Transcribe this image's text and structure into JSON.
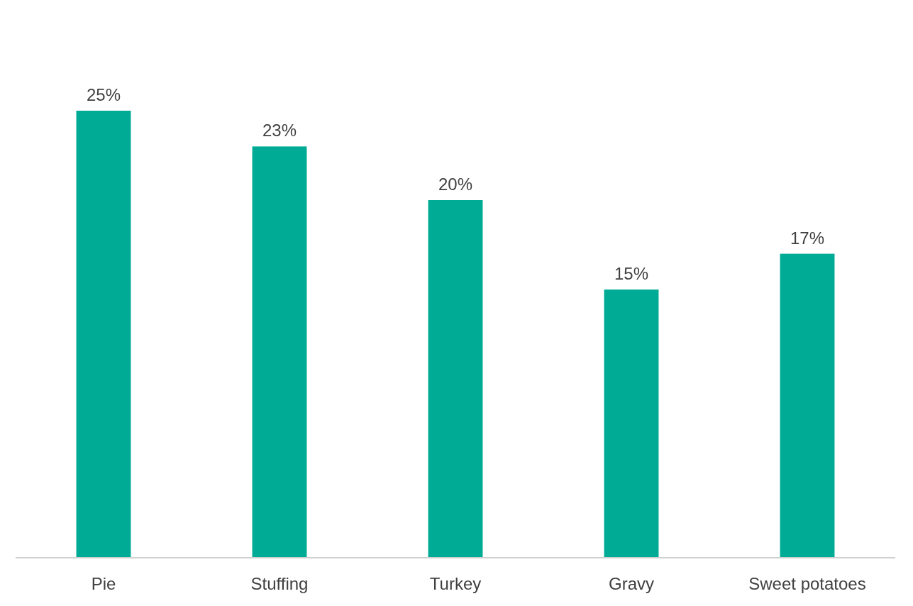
{
  "chart_data": {
    "type": "bar",
    "categories": [
      "Pie",
      "Stuffing",
      "Turkey",
      "Gravy",
      "Sweet potatoes"
    ],
    "values": [
      25,
      23,
      20,
      15,
      17
    ],
    "value_labels": [
      "25%",
      "23%",
      "20%",
      "15%",
      "17%"
    ],
    "color": "#00ab96",
    "tick_labels": "x"
  }
}
